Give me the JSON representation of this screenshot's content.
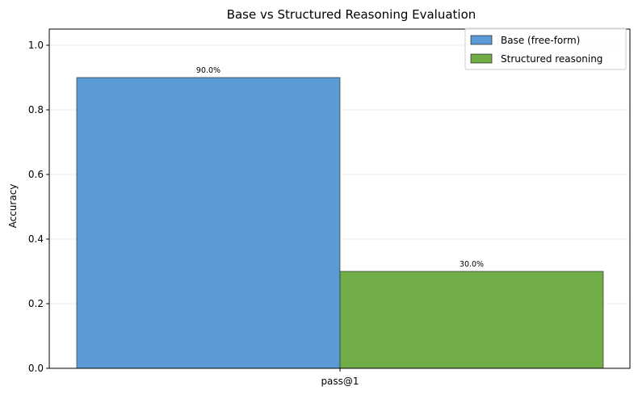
{
  "chart_data": {
    "type": "bar",
    "title": "Base vs Structured Reasoning Evaluation",
    "xlabel": "",
    "ylabel": "Accuracy",
    "categories": [
      "pass@1"
    ],
    "series": [
      {
        "name": "Base (free-form)",
        "values": [
          0.9
        ],
        "label": "90.0%",
        "color": "#5b9bd5"
      },
      {
        "name": "Structured reasoning",
        "values": [
          0.3
        ],
        "label": "30.0%",
        "color": "#70ad47"
      }
    ],
    "ylim": [
      0,
      1.05
    ],
    "yticks": [
      0.0,
      0.2,
      0.4,
      0.6,
      0.8,
      1.0
    ],
    "ytick_labels": [
      "0.0",
      "0.2",
      "0.4",
      "0.6",
      "0.8",
      "1.0"
    ],
    "grid": "y",
    "legend_position": "top-right"
  }
}
